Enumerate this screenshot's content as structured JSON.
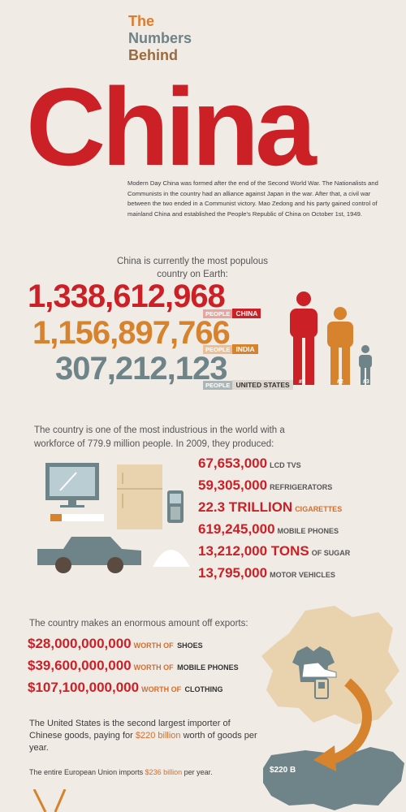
{
  "title": {
    "line1": "The",
    "line2": "Numbers",
    "line3": "Behind",
    "big": "China"
  },
  "intro": "Modern Day China was formed after the end of the Second World War. The Nationalists and Communists in the country had an alliance against Japan in the war. After that, a civil war between the two ended in a Communist victory. Mao Zedong and his party gained control of mainland China and established the People's Republic of China on October 1st, 1949.",
  "population": {
    "lead": "China is currently the most populous country on Earth:",
    "tag": "PEOPLE",
    "rows": [
      {
        "number": "1,338,612,968",
        "country": "CHINA",
        "color": "#cc2027"
      },
      {
        "number": "1,156,897,766",
        "country": "INDIA",
        "color": "#d7832e"
      },
      {
        "number": "307,212,123",
        "country": "UNITED STATES",
        "color": "#6e8488"
      }
    ],
    "ranks": [
      "#1",
      "#2",
      "#3"
    ]
  },
  "production": {
    "lead": "The country is one of the most industrious in the world with a workforce of 779.9 million people. In 2009, they produced:",
    "rows": [
      {
        "number": "67,653,000",
        "unit": "LCD TVS"
      },
      {
        "number": "59,305,000",
        "unit": "REFRIGERATORS"
      },
      {
        "number": "22.3 TRILLION",
        "unit": "CIGARETTES"
      },
      {
        "number": "619,245,000",
        "unit": "MOBILE PHONES"
      },
      {
        "number": "13,212,000 TONS",
        "unit": "OF SUGAR"
      },
      {
        "number": "13,795,000",
        "unit": "MOTOR VEHICLES"
      }
    ]
  },
  "exports": {
    "lead": "The country makes an enormous amount off exports:",
    "worth_of": "WORTH OF",
    "rows": [
      {
        "number": "$28,000,000,000",
        "item": "SHOES"
      },
      {
        "number": "$39,600,000,000",
        "item": "MOBILE PHONES"
      },
      {
        "number": "$107,100,000,000",
        "item": "CLOTHING"
      }
    ],
    "us_text_1": "The United States is the second largest importer of Chinese goods, paying for ",
    "us_highlight": "$220 billion",
    "us_text_2": " worth of goods per year.",
    "eu_text_1": "The entire European Union imports ",
    "eu_highlight": "$236 billion",
    "eu_text_2": " per year.",
    "map_label": "$220 B"
  },
  "colors": {
    "red": "#cc2027",
    "orange": "#d7832e",
    "slate": "#6e8488",
    "tan": "#e8d3ae",
    "background": "#f0ebe5"
  },
  "icons": [
    "person-icon",
    "tv-icon",
    "refrigerator-icon",
    "mobile-phone-icon",
    "cigarette-icon",
    "car-icon",
    "sugar-icon",
    "china-map-icon",
    "usa-map-icon",
    "shirt-icon",
    "shoe-icon",
    "arrow-icon",
    "chopsticks-icon"
  ]
}
